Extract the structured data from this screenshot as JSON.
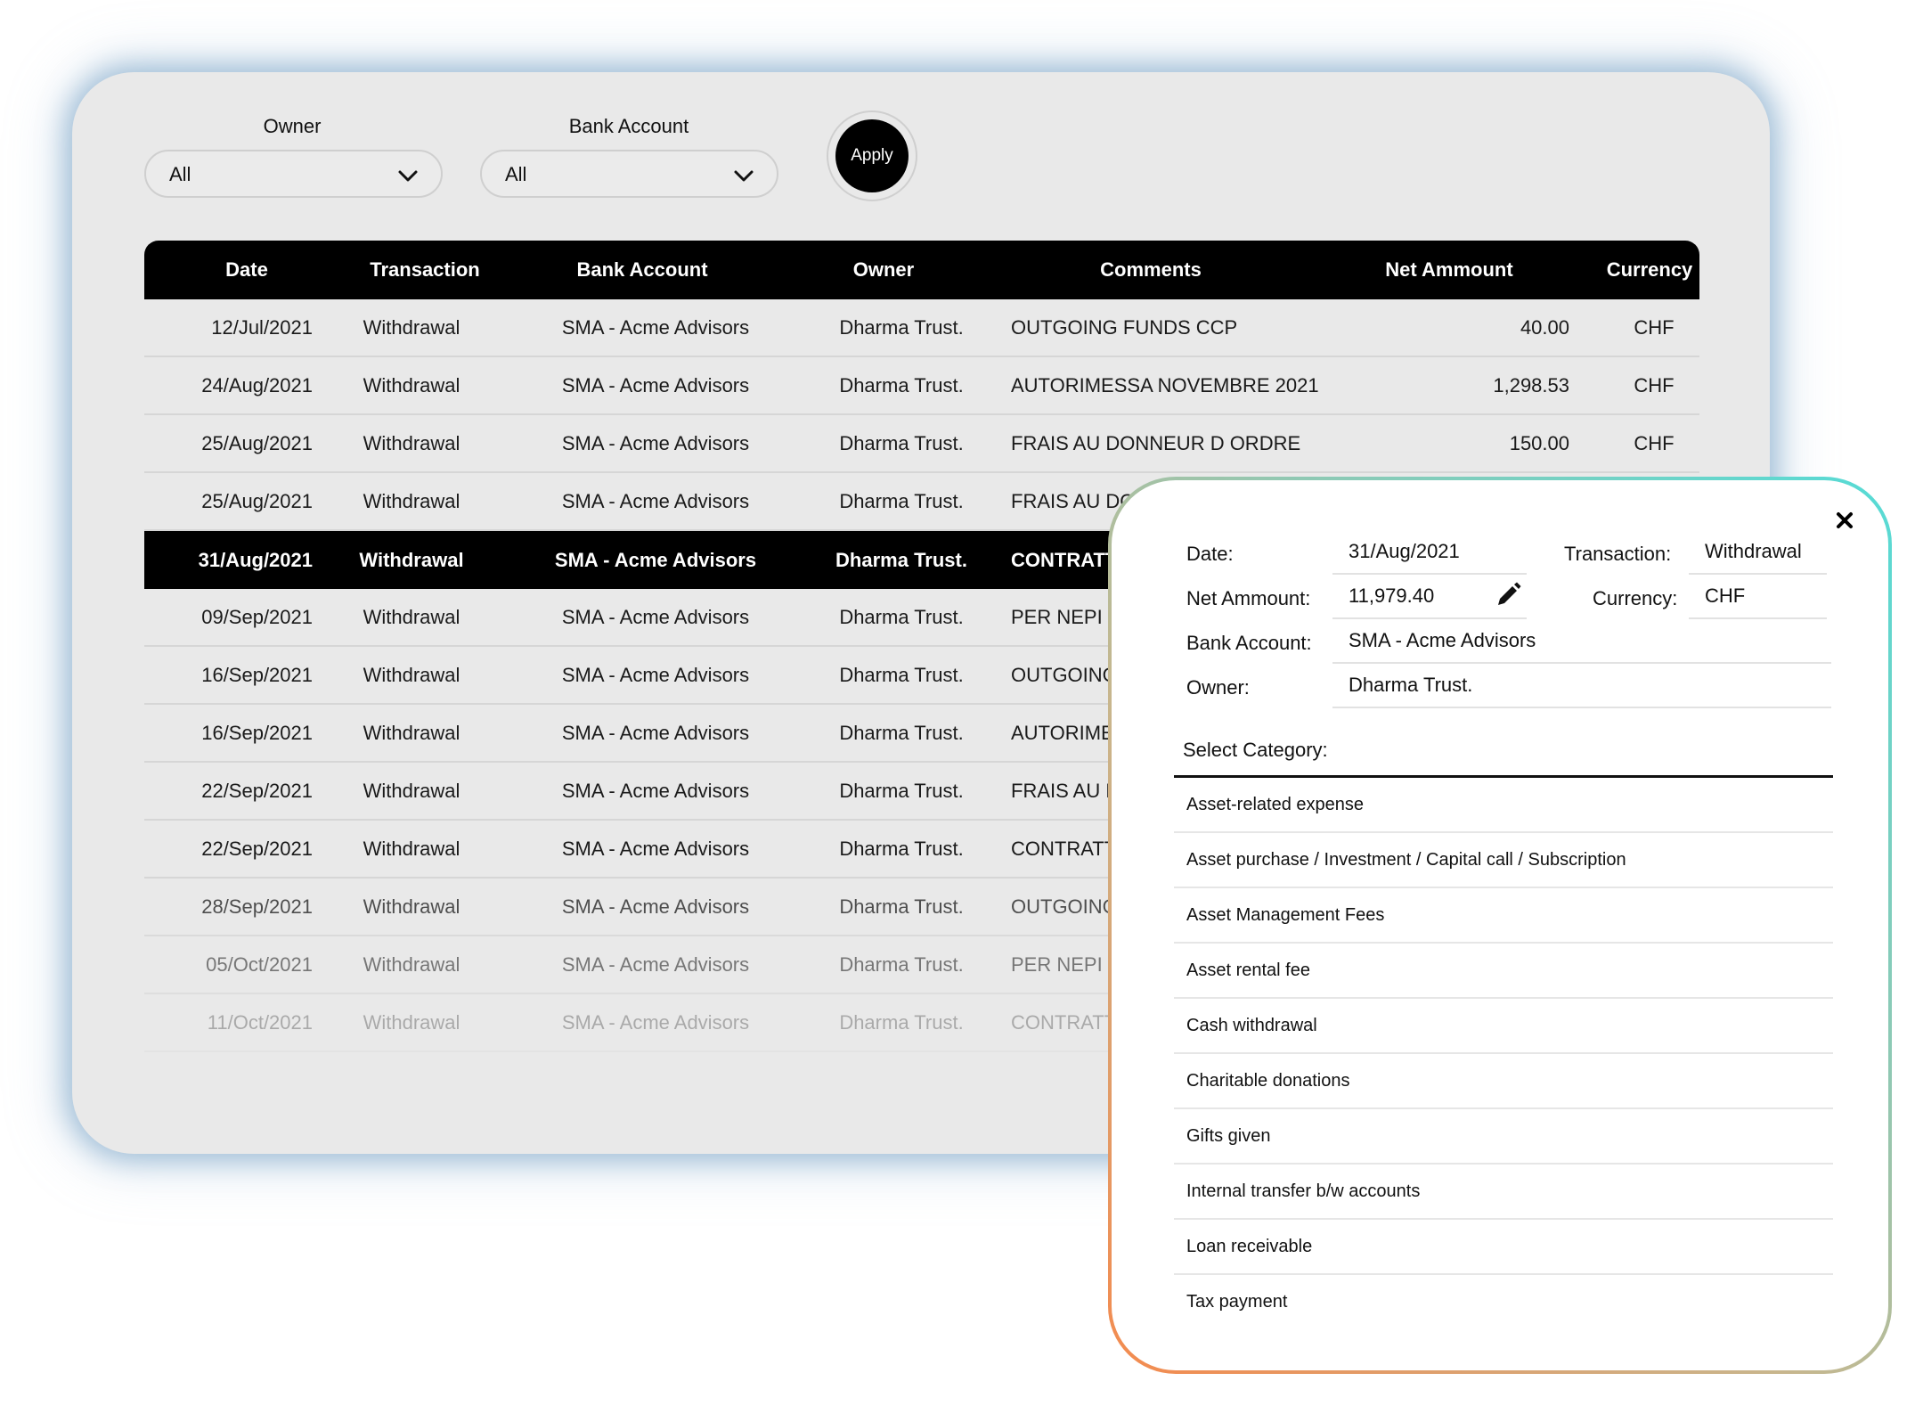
{
  "filters": {
    "owner_label": "Owner",
    "owner_value": "All",
    "bank_label": "Bank Account",
    "bank_value": "All",
    "apply_label": "Apply"
  },
  "table": {
    "headers": [
      "Date",
      "Transaction",
      "Bank Account",
      "Owner",
      "Comments",
      "Net Ammount",
      "Currency"
    ],
    "rows": [
      {
        "date": "12/Jul/2021",
        "transaction": "Withdrawal",
        "bank": "SMA - Acme Advisors",
        "owner": "Dharma Trust.",
        "comment": "OUTGOING FUNDS CCP",
        "net": "40.00",
        "currency": "CHF"
      },
      {
        "date": "24/Aug/2021",
        "transaction": "Withdrawal",
        "bank": "SMA - Acme Advisors",
        "owner": "Dharma Trust.",
        "comment": "AUTORIMESSA NOVEMBRE 2021",
        "net": "1,298.53",
        "currency": "CHF"
      },
      {
        "date": "25/Aug/2021",
        "transaction": "Withdrawal",
        "bank": "SMA - Acme Advisors",
        "owner": "Dharma Trust.",
        "comment": "FRAIS AU DONNEUR D ORDRE",
        "net": "150.00",
        "currency": "CHF"
      },
      {
        "date": "25/Aug/2021",
        "transaction": "Withdrawal",
        "bank": "SMA - Acme Advisors",
        "owner": "Dharma Trust.",
        "comment": "FRAIS AU DO",
        "net": "",
        "currency": ""
      },
      {
        "date": "31/Aug/2021",
        "transaction": "Withdrawal",
        "bank": "SMA - Acme Advisors",
        "owner": "Dharma Trust.",
        "comment": "CONTRATT",
        "net": "",
        "currency": "",
        "selected": true
      },
      {
        "date": "09/Sep/2021",
        "transaction": "Withdrawal",
        "bank": "SMA - Acme Advisors",
        "owner": "Dharma Trust.",
        "comment": "PER NEPI S",
        "net": "",
        "currency": ""
      },
      {
        "date": "16/Sep/2021",
        "transaction": "Withdrawal",
        "bank": "SMA - Acme Advisors",
        "owner": "Dharma Trust.",
        "comment": "OUTGOING",
        "net": "",
        "currency": ""
      },
      {
        "date": "16/Sep/2021",
        "transaction": "Withdrawal",
        "bank": "SMA - Acme Advisors",
        "owner": "Dharma Trust.",
        "comment": "AUTORIMES",
        "net": "",
        "currency": ""
      },
      {
        "date": "22/Sep/2021",
        "transaction": "Withdrawal",
        "bank": "SMA - Acme Advisors",
        "owner": "Dharma Trust.",
        "comment": "FRAIS AU D",
        "net": "",
        "currency": ""
      },
      {
        "date": "22/Sep/2021",
        "transaction": "Withdrawal",
        "bank": "SMA - Acme Advisors",
        "owner": "Dharma Trust.",
        "comment": "CONTRATT",
        "net": "",
        "currency": ""
      },
      {
        "date": "28/Sep/2021",
        "transaction": "Withdrawal",
        "bank": "SMA - Acme Advisors",
        "owner": "Dharma Trust.",
        "comment": "OUTGOING",
        "net": "",
        "currency": ""
      },
      {
        "date": "05/Oct/2021",
        "transaction": "Withdrawal",
        "bank": "SMA - Acme Advisors",
        "owner": "Dharma Trust.",
        "comment": "PER NEPI S",
        "net": "",
        "currency": ""
      },
      {
        "date": "11/Oct/2021",
        "transaction": "Withdrawal",
        "bank": "SMA - Acme Advisors",
        "owner": "Dharma Trust.",
        "comment": "CONTRATT",
        "net": "",
        "currency": ""
      }
    ]
  },
  "detail": {
    "date_label": "Date:",
    "date_value": "31/Aug/2021",
    "transaction_label": "Transaction:",
    "transaction_value": "Withdrawal",
    "net_label": "Net Ammount:",
    "net_value": "11,979.40",
    "currency_label": "Currency:",
    "currency_value": "CHF",
    "bank_label": "Bank Account:",
    "bank_value": "SMA - Acme Advisors",
    "owner_label": "Owner:",
    "owner_value": "Dharma Trust.",
    "category_title": "Select Category:",
    "categories": [
      "Asset-related expense",
      "Asset purchase / Investment / Capital call / Subscription",
      "Asset Management Fees",
      "Asset rental fee",
      "Cash withdrawal",
      "Charitable donations",
      "Gifts given",
      "Internal transfer b/w accounts",
      "Loan receivable",
      "Tax payment"
    ]
  }
}
